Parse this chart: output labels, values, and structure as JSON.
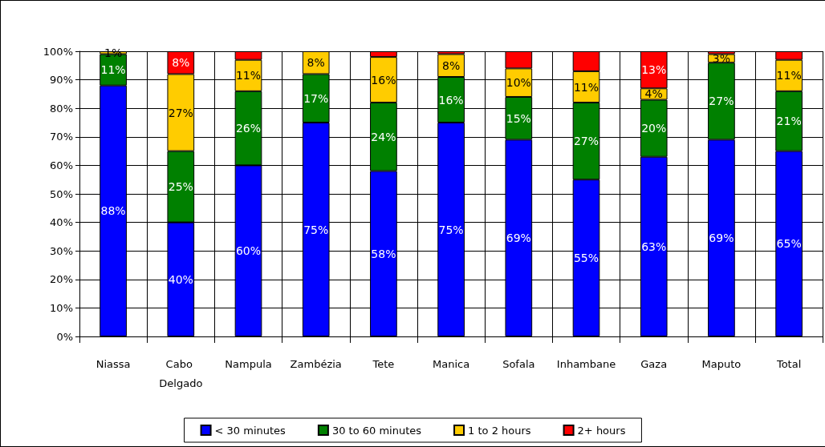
{
  "chart_data": {
    "type": "bar",
    "stacked": true,
    "categories": [
      "Niassa",
      "Cabo Delgado",
      "Nampula",
      "Zambézia",
      "Tete",
      "Manica",
      "Sofala",
      "Inhambane",
      "Gaza",
      "Maputo",
      "Total"
    ],
    "series": [
      {
        "name": "< 30 minutes",
        "color": "#0000ff",
        "values": [
          88,
          40,
          60,
          75,
          58,
          75,
          69,
          55,
          63,
          69,
          65
        ],
        "value_labels": [
          "88%",
          "40%",
          "60%",
          "75%",
          "58%",
          "75%",
          "69%",
          "55%",
          "63%",
          "69%",
          "65%"
        ]
      },
      {
        "name": "30 to 60 minutes",
        "color": "#008000",
        "values": [
          11,
          25,
          26,
          17,
          24,
          16,
          15,
          27,
          20,
          27,
          21
        ],
        "value_labels": [
          "11%",
          "25%",
          "26%",
          "17%",
          "24%",
          "16%",
          "15%",
          "27%",
          "20%",
          "27%",
          "21%"
        ]
      },
      {
        "name": "1 to 2 hours",
        "color": "#ffcc00",
        "values": [
          1,
          27,
          11,
          8,
          16,
          8,
          10,
          11,
          4,
          3,
          11
        ],
        "value_labels": [
          "1%",
          "27%",
          "11%",
          "8%",
          "16%",
          "8%",
          "10%",
          "11%",
          "4%",
          "3%",
          "11%"
        ]
      },
      {
        "name": "2+ hours",
        "color": "#ff0000",
        "values": [
          null,
          8,
          3,
          null,
          2,
          1,
          6,
          7,
          13,
          1,
          3
        ],
        "value_labels": [
          null,
          "8%",
          null,
          null,
          null,
          null,
          null,
          null,
          "13%",
          null,
          null
        ]
      }
    ],
    "ylim": [
      0,
      100
    ],
    "yticks": [
      {
        "value": 0,
        "label": "0%"
      },
      {
        "value": 10,
        "label": "10%"
      },
      {
        "value": 20,
        "label": "20%"
      },
      {
        "value": 30,
        "label": "30%"
      },
      {
        "value": 40,
        "label": "40%"
      },
      {
        "value": 50,
        "label": "50%"
      },
      {
        "value": 60,
        "label": "60%"
      },
      {
        "value": 70,
        "label": "70%"
      },
      {
        "value": 80,
        "label": "80%"
      },
      {
        "value": 90,
        "label": "90%"
      },
      {
        "value": 100,
        "label": "100%"
      }
    ],
    "grid": true,
    "legend": "bottom"
  }
}
